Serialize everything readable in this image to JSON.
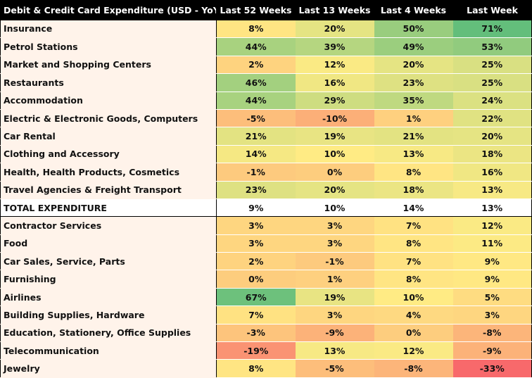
{
  "chart_data": {
    "type": "heatmap",
    "title": "Debit & Credit Card Expenditure (USD - YoY %)",
    "columns": [
      "Last 52 Weeks",
      "Last 13 Weeks",
      "Last 4 Weeks",
      "Last Week"
    ],
    "rows": [
      {
        "label": "Insurance",
        "values": [
          "8%",
          "20%",
          "50%",
          "71%"
        ],
        "numbers": [
          8,
          20,
          50,
          71
        ]
      },
      {
        "label": "Petrol Stations",
        "values": [
          "44%",
          "39%",
          "49%",
          "53%"
        ],
        "numbers": [
          44,
          39,
          49,
          53
        ]
      },
      {
        "label": "Market and Shopping Centers",
        "values": [
          "2%",
          "12%",
          "20%",
          "25%"
        ],
        "numbers": [
          2,
          12,
          20,
          25
        ]
      },
      {
        "label": "Restaurants",
        "values": [
          "46%",
          "16%",
          "23%",
          "25%"
        ],
        "numbers": [
          46,
          16,
          23,
          25
        ]
      },
      {
        "label": "Accommodation",
        "values": [
          "44%",
          "29%",
          "35%",
          "24%"
        ],
        "numbers": [
          44,
          29,
          35,
          24
        ]
      },
      {
        "label": "Electric & Electronic Goods, Computers",
        "values": [
          "-5%",
          "-10%",
          "1%",
          "22%"
        ],
        "numbers": [
          -5,
          -10,
          1,
          22
        ]
      },
      {
        "label": "Car Rental",
        "values": [
          "21%",
          "19%",
          "21%",
          "20%"
        ],
        "numbers": [
          21,
          19,
          21,
          20
        ]
      },
      {
        "label": "Clothing and Accessory",
        "values": [
          "14%",
          "10%",
          "13%",
          "18%"
        ],
        "numbers": [
          14,
          10,
          13,
          18
        ]
      },
      {
        "label": "Health, Health Products, Cosmetics",
        "values": [
          "-1%",
          "0%",
          "8%",
          "16%"
        ],
        "numbers": [
          -1,
          0,
          8,
          16
        ]
      },
      {
        "label": "Travel Agencies & Freight Transport",
        "values": [
          "23%",
          "20%",
          "18%",
          "13%"
        ],
        "numbers": [
          23,
          20,
          18,
          13
        ]
      },
      {
        "label": "TOTAL EXPENDITURE",
        "values": [
          "9%",
          "10%",
          "14%",
          "13%"
        ],
        "numbers": [
          9,
          10,
          14,
          13
        ],
        "total": true
      },
      {
        "label": "Contractor Services",
        "values": [
          "3%",
          "3%",
          "7%",
          "12%"
        ],
        "numbers": [
          3,
          3,
          7,
          12
        ]
      },
      {
        "label": "Food",
        "values": [
          "3%",
          "3%",
          "8%",
          "11%"
        ],
        "numbers": [
          3,
          3,
          8,
          11
        ]
      },
      {
        "label": "Car Sales, Service, Parts",
        "values": [
          "2%",
          "-1%",
          "7%",
          "9%"
        ],
        "numbers": [
          2,
          -1,
          7,
          9
        ]
      },
      {
        "label": "Furnishing",
        "values": [
          "0%",
          "1%",
          "8%",
          "9%"
        ],
        "numbers": [
          0,
          1,
          8,
          9
        ]
      },
      {
        "label": "Airlines",
        "values": [
          "67%",
          "19%",
          "10%",
          "5%"
        ],
        "numbers": [
          67,
          19,
          10,
          5
        ]
      },
      {
        "label": "Building Supplies, Hardware",
        "values": [
          "7%",
          "3%",
          "4%",
          "3%"
        ],
        "numbers": [
          7,
          3,
          4,
          3
        ]
      },
      {
        "label": "Education, Stationery, Office Supplies",
        "values": [
          "-3%",
          "-9%",
          "0%",
          "-8%"
        ],
        "numbers": [
          -3,
          -9,
          0,
          -8
        ]
      },
      {
        "label": "Telecommunication",
        "values": [
          "-19%",
          "13%",
          "12%",
          "-9%"
        ],
        "numbers": [
          -19,
          13,
          12,
          -9
        ]
      },
      {
        "label": "Jewelry",
        "values": [
          "8%",
          "-5%",
          "-8%",
          "-33%"
        ],
        "numbers": [
          8,
          -5,
          -8,
          -33
        ]
      }
    ],
    "color_scale": {
      "low": "#f8696b",
      "mid": "#ffeb84",
      "high": "#63be7b",
      "label_background": "#fff3ea",
      "header_background": "#000000",
      "header_text": "#ffffff"
    }
  }
}
